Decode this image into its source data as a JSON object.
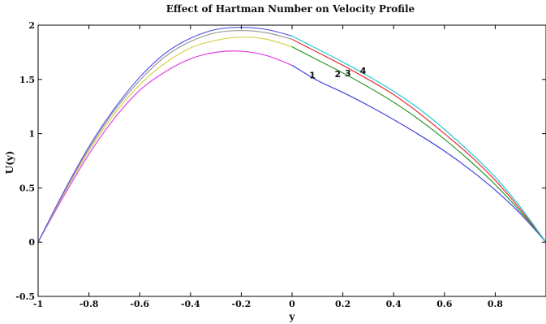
{
  "chart_data": {
    "type": "line",
    "title": "Effect of Hartman Number on Velocity Profile",
    "xlabel": "y",
    "ylabel": "U(y)",
    "xlim": [
      -1,
      1
    ],
    "ylim": [
      -0.5,
      2
    ],
    "xticks": [
      -1,
      -0.8,
      -0.6,
      -0.4,
      -0.2,
      0,
      0.2,
      0.4,
      0.6,
      0.8
    ],
    "xtick_labels": [
      "-1",
      "-0.8",
      "-0.6",
      "-0.4",
      "-0.2",
      "0",
      "0.2",
      "0.4",
      "0.6",
      "0.8"
    ],
    "yticks": [
      -0.5,
      0,
      0.5,
      1,
      1.5,
      2
    ],
    "ytick_labels": [
      "-0.5",
      "0",
      "0.5",
      "1",
      "1.5",
      "2"
    ],
    "grid": false,
    "curve_labels": [
      {
        "text": "1",
        "x": 0.08,
        "y": 1.51
      },
      {
        "text": "2",
        "x": 0.18,
        "y": 1.52
      },
      {
        "text": "3",
        "x": 0.22,
        "y": 1.53
      },
      {
        "text": "4",
        "x": 0.28,
        "y": 1.55
      }
    ],
    "series": [
      {
        "color": "#e040e0",
        "x": [
          -1,
          -0.9,
          -0.8,
          -0.7,
          -0.6,
          -0.5,
          -0.4,
          -0.3,
          -0.2,
          -0.1,
          0
        ],
        "y": [
          0,
          0.42,
          0.81,
          1.14,
          1.4,
          1.57,
          1.69,
          1.75,
          1.76,
          1.72,
          1.63
        ]
      },
      {
        "color": "#d6d24a",
        "x": [
          -1,
          -0.9,
          -0.8,
          -0.7,
          -0.6,
          -0.5,
          -0.4,
          -0.3,
          -0.2,
          -0.1,
          0
        ],
        "y": [
          0,
          0.44,
          0.84,
          1.18,
          1.45,
          1.65,
          1.79,
          1.86,
          1.89,
          1.87,
          1.8
        ]
      },
      {
        "color": "#9a9a9a",
        "x": [
          -1,
          -0.9,
          -0.8,
          -0.7,
          -0.6,
          -0.5,
          -0.4,
          -0.3,
          -0.2,
          -0.1,
          0
        ],
        "y": [
          0,
          0.45,
          0.86,
          1.21,
          1.49,
          1.71,
          1.85,
          1.93,
          1.95,
          1.93,
          1.87
        ]
      },
      {
        "color": "#5a5ae6",
        "x": [
          -1,
          -0.9,
          -0.8,
          -0.7,
          -0.6,
          -0.5,
          -0.4,
          -0.3,
          -0.2,
          -0.1,
          0
        ],
        "y": [
          0,
          0.46,
          0.88,
          1.23,
          1.52,
          1.74,
          1.88,
          1.96,
          1.98,
          1.96,
          1.9
        ]
      },
      {
        "color": "#4040e0",
        "x": [
          0,
          0.1,
          0.2,
          0.3,
          0.4,
          0.5,
          0.6,
          0.7,
          0.8,
          0.9,
          1
        ],
        "y": [
          1.63,
          1.49,
          1.38,
          1.26,
          1.13,
          0.99,
          0.84,
          0.67,
          0.48,
          0.26,
          0
        ]
      },
      {
        "color": "#2e9a2e",
        "x": [
          0,
          0.1,
          0.2,
          0.3,
          0.4,
          0.5,
          0.6,
          0.7,
          0.8,
          0.9,
          1
        ],
        "y": [
          1.8,
          1.68,
          1.56,
          1.43,
          1.29,
          1.13,
          0.95,
          0.75,
          0.53,
          0.28,
          0
        ]
      },
      {
        "color": "#e83030",
        "x": [
          0,
          0.1,
          0.2,
          0.3,
          0.4,
          0.5,
          0.6,
          0.7,
          0.8,
          0.9,
          1
        ],
        "y": [
          1.87,
          1.75,
          1.63,
          1.5,
          1.36,
          1.19,
          1.0,
          0.8,
          0.57,
          0.3,
          0
        ]
      },
      {
        "color": "#20c8d8",
        "x": [
          0,
          0.1,
          0.2,
          0.3,
          0.4,
          0.5,
          0.6,
          0.7,
          0.8,
          0.9,
          1
        ],
        "y": [
          1.9,
          1.78,
          1.66,
          1.53,
          1.39,
          1.23,
          1.04,
          0.83,
          0.6,
          0.32,
          0
        ]
      }
    ]
  }
}
